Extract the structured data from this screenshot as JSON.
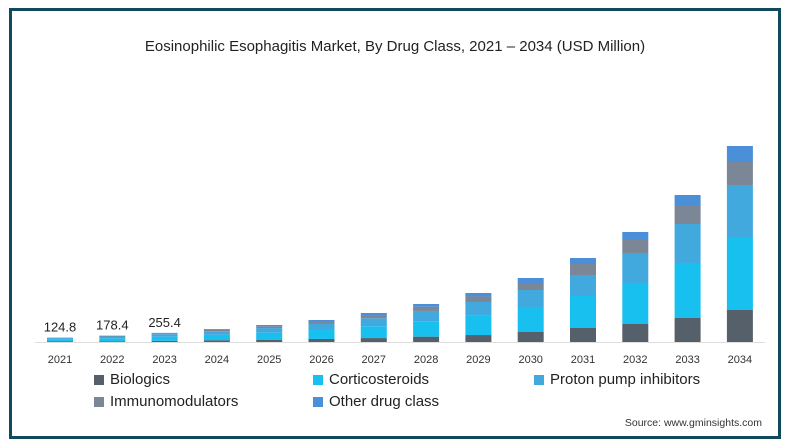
{
  "chart_data": {
    "type": "bar",
    "stacked": true,
    "title": "Eosinophilic Esophagitis Market, By Drug Class, 2021 – 2034 (USD Million)",
    "xlabel": "",
    "ylabel": "",
    "categories": [
      "2021",
      "2022",
      "2023",
      "2024",
      "2025",
      "2026",
      "2027",
      "2028",
      "2029",
      "2030",
      "2031",
      "2032",
      "2033",
      "2034"
    ],
    "series": [
      {
        "name": "Biologics",
        "color": "#56606b",
        "values": [
          15,
          22,
          32,
          50,
          65,
          85,
          110,
          150,
          195,
          280,
          392,
          504,
          672,
          896
        ]
      },
      {
        "name": "Corticosteroids",
        "color": "#18c0f0",
        "values": [
          60,
          82,
          115,
          150,
          195,
          250,
          330,
          430,
          550,
          700,
          896,
          1148,
          1540,
          2044
        ]
      },
      {
        "name": "Proton pump inhibitors",
        "color": "#42a9df",
        "values": [
          35,
          50,
          72,
          100,
          130,
          170,
          225,
          290,
          375,
          476,
          588,
          840,
          1092,
          1456
        ]
      },
      {
        "name": "Immunomodulators",
        "color": "#7b8697",
        "values": [
          9,
          15,
          23,
          40,
          52,
          68,
          90,
          120,
          155,
          196,
          308,
          392,
          504,
          644
        ]
      },
      {
        "name": "Other drug class",
        "color": "#4b8fd8",
        "values": [
          5.8,
          9.4,
          13.4,
          24,
          34,
          43,
          57,
          74,
          97,
          140,
          168,
          196,
          308,
          448
        ]
      }
    ],
    "data_labels": [
      {
        "category": "2021",
        "text": "124.8"
      },
      {
        "category": "2022",
        "text": "178.4"
      },
      {
        "category": "2023",
        "text": "255.4"
      }
    ],
    "ylim": [
      0,
      5600
    ],
    "grid": false,
    "legend_placement": "bottom"
  },
  "source": "Source: www.gminsights.com"
}
